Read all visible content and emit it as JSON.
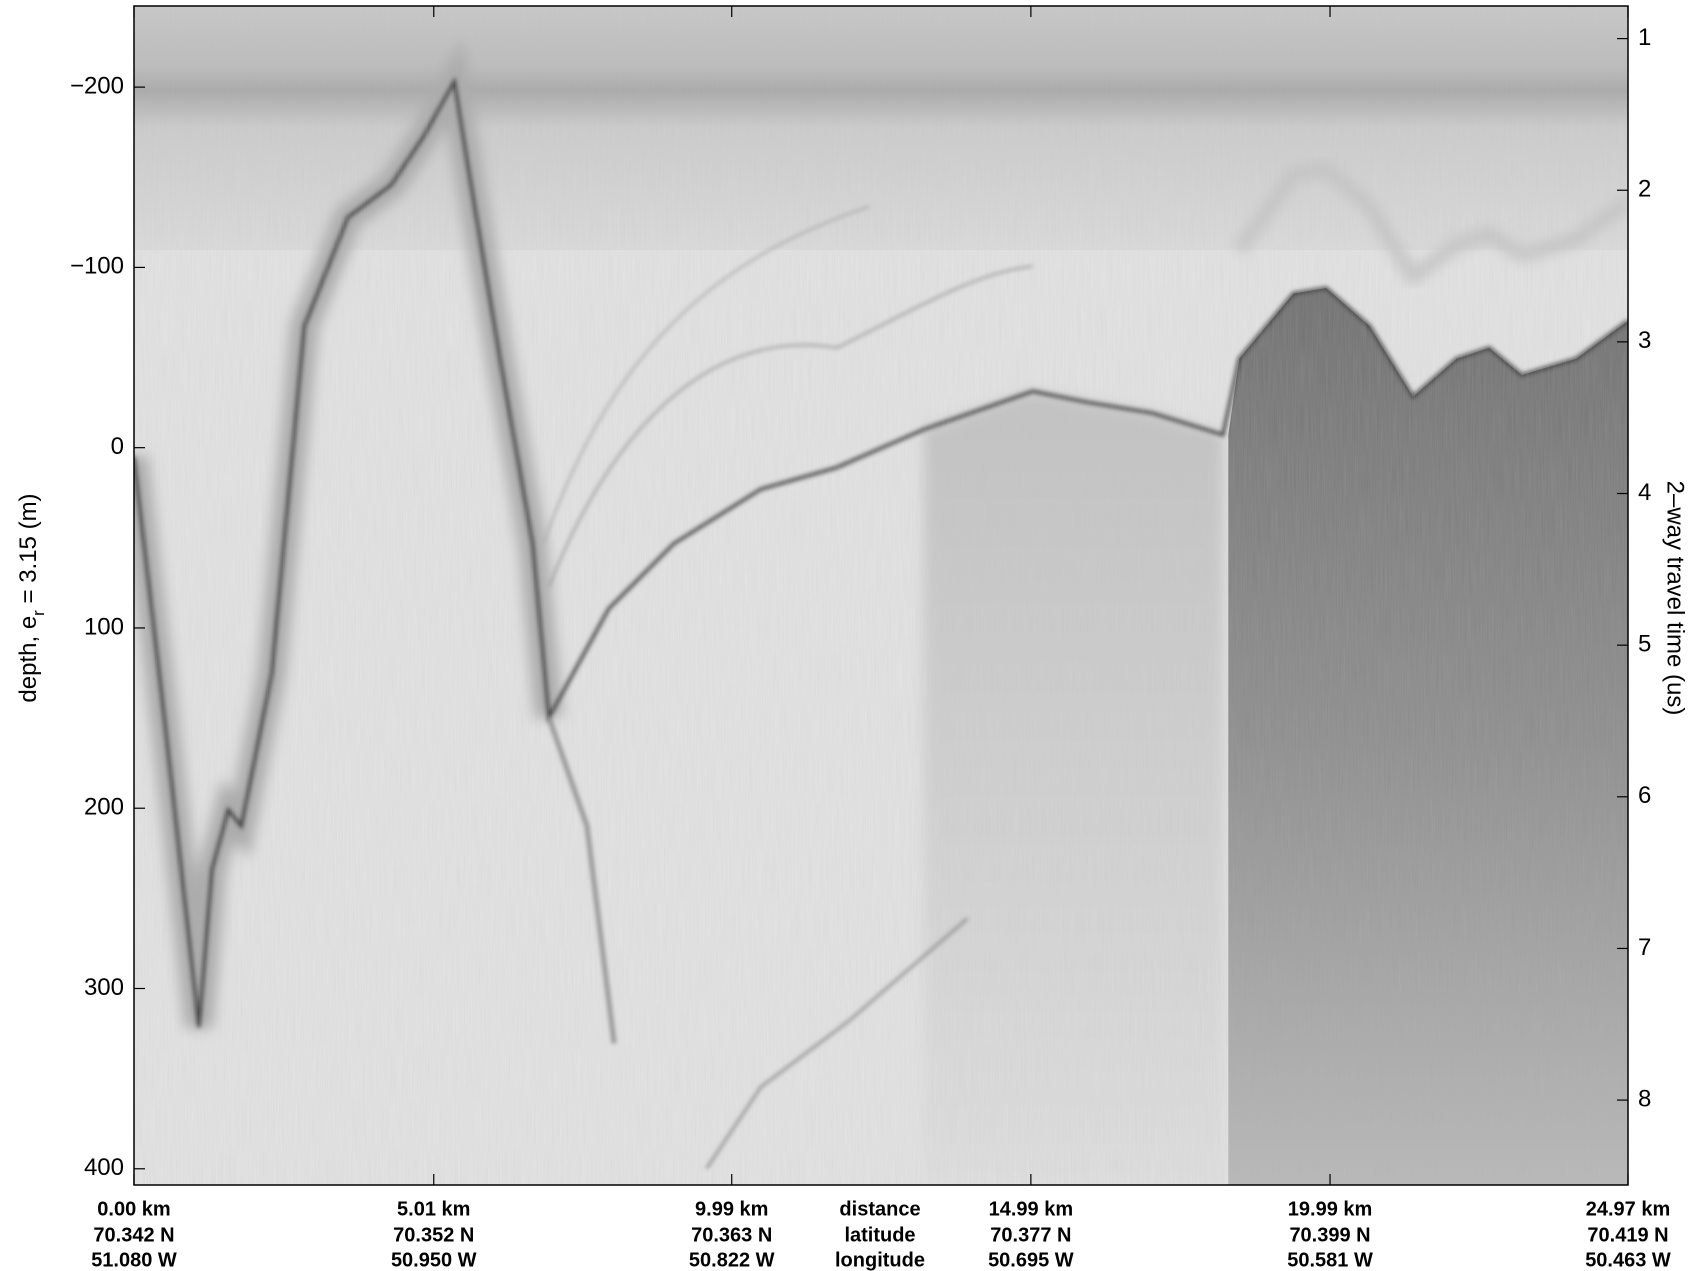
{
  "chart_data": {
    "type": "echogram",
    "xlim": [
      0,
      24.97
    ],
    "xticks": [
      {
        "value": 0,
        "label": "0.00 km"
      },
      {
        "value": 5.01,
        "label": "5.01 km"
      },
      {
        "value": 9.99,
        "label": "9.99 km"
      },
      {
        "value": 14.99,
        "label": "14.99 km"
      },
      {
        "value": 19.99,
        "label": "19.99 km"
      },
      {
        "value": 24.97,
        "label": "24.97 km"
      }
    ],
    "latitudes": [
      "70.342 N",
      "70.352 N",
      "70.363 N",
      "70.377 N",
      "70.399 N",
      "70.419 N"
    ],
    "longitudes": [
      "51.080 W",
      "50.950 W",
      "50.822 W",
      "50.695 W",
      "50.581 W",
      "50.463 W"
    ],
    "x_row_labels": [
      "distance",
      "latitude",
      "longitude"
    ],
    "ylabel": [
      "depth, e",
      "r",
      " = 3.15 (m)"
    ],
    "ylim": [
      -245,
      409
    ],
    "yticks": [
      {
        "value": -200,
        "label": "−200"
      },
      {
        "value": -100,
        "label": "−100"
      },
      0,
      100,
      200,
      300,
      400
    ],
    "y_inverted": true,
    "y2label": "2–way travel time (us)",
    "y2lim": [
      0.785,
      8.56
    ],
    "y2ticks": [
      1,
      2,
      3,
      4,
      5,
      6,
      7,
      8
    ]
  }
}
